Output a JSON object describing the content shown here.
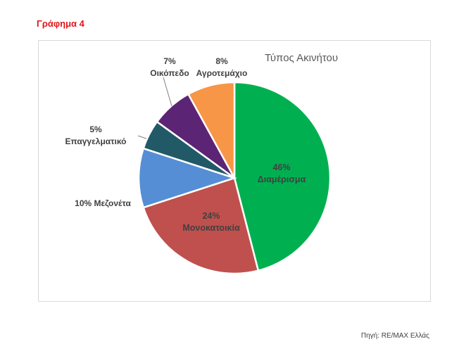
{
  "heading": "Γράφημα 4",
  "source_note": "Πηγή: RE/MAX Ελλάς",
  "chart_data": {
    "type": "pie",
    "title": "Τύπος Ακινήτου",
    "slices": [
      {
        "name": "Διαμέρισμα",
        "value": 46,
        "label_pct": "46%",
        "color": "#00b050"
      },
      {
        "name": "Μονοκατοικία",
        "value": 24,
        "label_pct": "24%",
        "color": "#c0504d"
      },
      {
        "name": "Μεζονέτα",
        "value": 10,
        "label_pct": "10%",
        "color": "#558ed5"
      },
      {
        "name": "Επαγγελματικό",
        "value": 5,
        "label_pct": "5%",
        "color": "#215967"
      },
      {
        "name": "Οικόπεδο",
        "value": 7,
        "label_pct": "7%",
        "color": "#5b2474"
      },
      {
        "name": "Αγροτεμάχιο",
        "value": 8,
        "label_pct": "8%",
        "color": "#f79646"
      }
    ],
    "legend": "none",
    "data_labels": "category name and percentage"
  }
}
